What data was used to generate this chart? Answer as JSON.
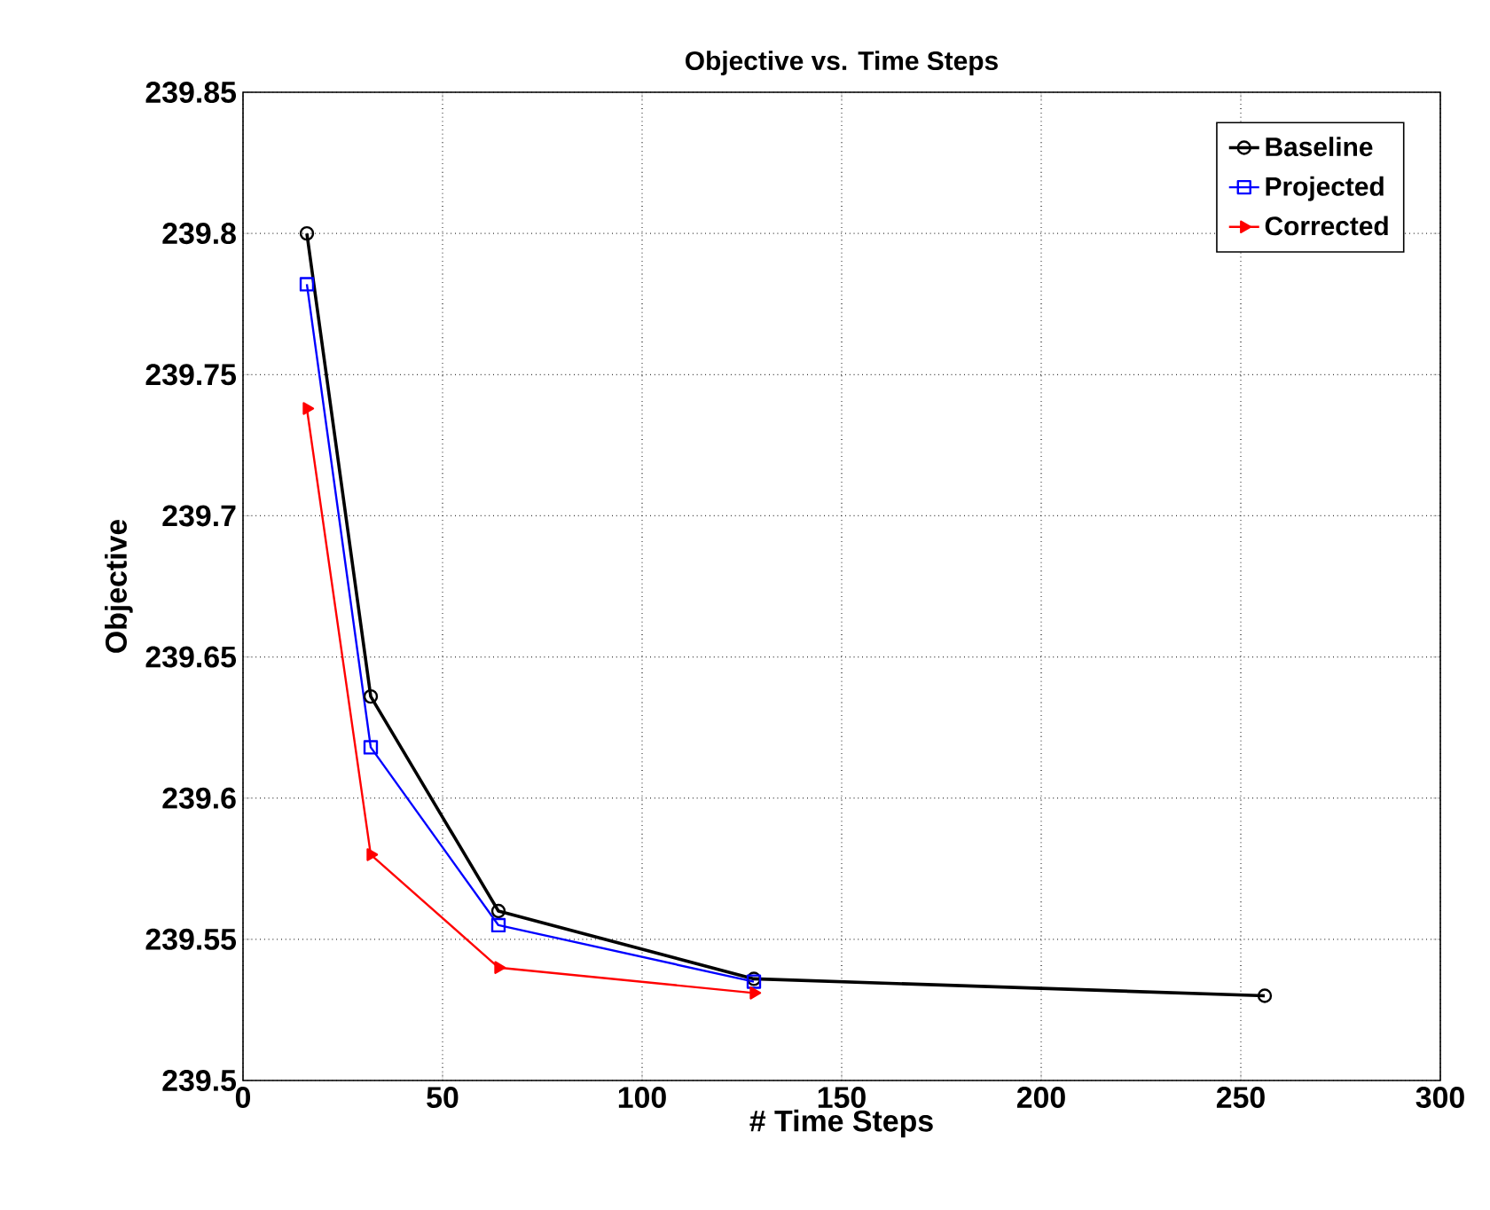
{
  "chart_data": {
    "type": "line",
    "title": "Objective vs. Time Steps",
    "xlabel": "# Time Steps",
    "ylabel": "Objective",
    "x": [
      16,
      32,
      64,
      128,
      256
    ],
    "series": [
      {
        "name": "Baseline",
        "color": "#000000",
        "marker": "circle",
        "values": [
          239.8,
          239.636,
          239.56,
          239.536,
          239.53
        ]
      },
      {
        "name": "Projected",
        "color": "#0000ff",
        "marker": "square",
        "values": [
          239.782,
          239.618,
          239.555,
          239.535,
          null
        ]
      },
      {
        "name": "Corrected",
        "color": "#ff0000",
        "marker": "triangle",
        "values": [
          239.738,
          239.58,
          239.54,
          239.531,
          null
        ]
      }
    ],
    "xlim": [
      0,
      300
    ],
    "ylim": [
      239.5,
      239.85
    ],
    "xticks": [
      0,
      50,
      100,
      150,
      200,
      250,
      300
    ],
    "yticks": [
      239.5,
      239.55,
      239.6,
      239.65,
      239.7,
      239.75,
      239.8,
      239.85
    ],
    "grid": true,
    "legend": "top right"
  }
}
